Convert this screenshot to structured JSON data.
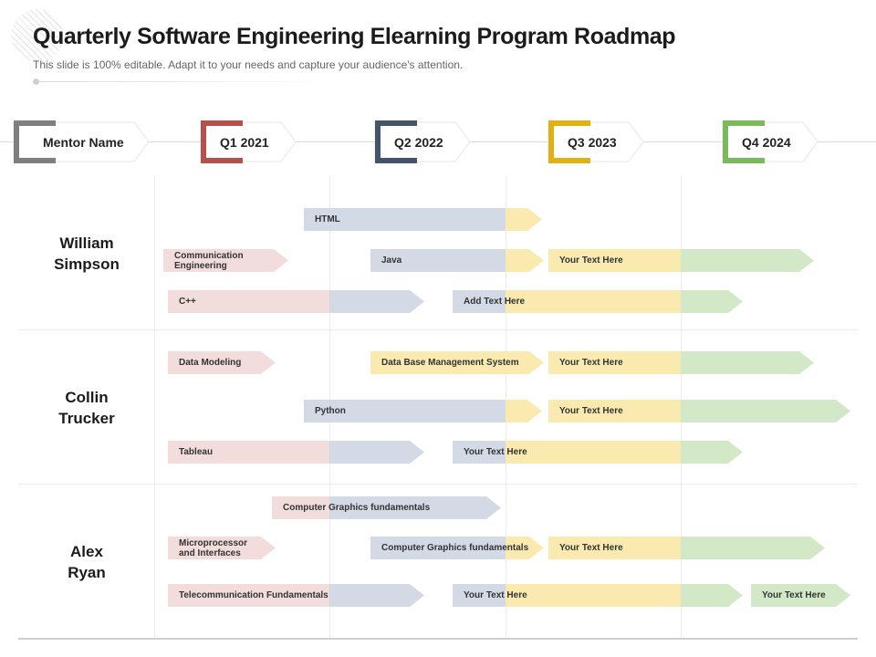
{
  "title": "Quarterly Software Engineering Elearning Program Roadmap",
  "subtitle": "This slide is 100% editable. Adapt it to your needs and capture your audience's attention.",
  "headers": [
    {
      "label": "Mentor Name",
      "color": "#7f7f7f"
    },
    {
      "label": "Q1 2021",
      "color": "#b5504d"
    },
    {
      "label": "Q2 2022",
      "color": "#44546a"
    },
    {
      "label": "Q3 2023",
      "color": "#e0b114"
    },
    {
      "label": "Q4 2024",
      "color": "#7bb95c"
    }
  ],
  "mentors": [
    {
      "name_line1": "William",
      "name_line2": "Simpson"
    },
    {
      "name_line1": "Collin",
      "name_line2": "Trucker"
    },
    {
      "name_line1": "Alex",
      "name_line2": "Ryan"
    }
  ],
  "colors": {
    "q1": "#f2dcdc",
    "q2": "#d3dae6",
    "q3": "#faeab0",
    "q4": "#d3e8c6"
  },
  "tasks": [
    {
      "label": "HTML"
    },
    {
      "label": "Communication\nEngineering"
    },
    {
      "label": "Java"
    },
    {
      "label": "Your Text Here"
    },
    {
      "label": "C++"
    },
    {
      "label": "Add Text Here"
    },
    {
      "label": "Data Modeling"
    },
    {
      "label": "Data Base Management System"
    },
    {
      "label": "Your Text Here"
    },
    {
      "label": "Python"
    },
    {
      "label": "Your Text Here"
    },
    {
      "label": "Tableau"
    },
    {
      "label": "Your Text Here"
    },
    {
      "label": "Computer Graphics fundamentals"
    },
    {
      "label": "Microprocessor\nand Interfaces"
    },
    {
      "label": "Computer Graphics fundamentals"
    },
    {
      "label": "Your Text Here"
    },
    {
      "label": "Telecommunication Fundamentals"
    },
    {
      "label": "Your Text Here"
    },
    {
      "label": "Your Text Here"
    }
  ]
}
